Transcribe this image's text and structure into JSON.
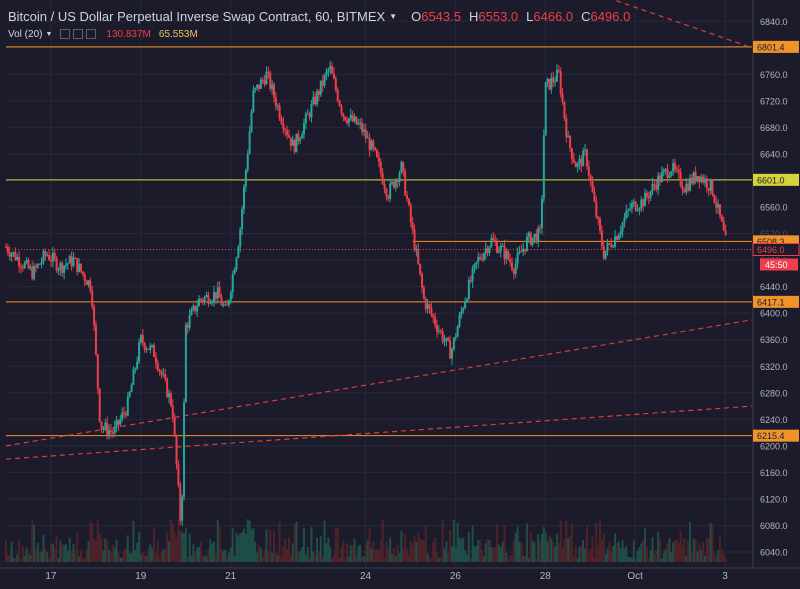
{
  "header": {
    "title": "Bitcoin / US Dollar Perpetual Inverse Swap Contract, 60, BITMEX",
    "dropdown_icon": "chevron-down-icon",
    "ohlc": [
      {
        "key": "O",
        "value": "6543.5"
      },
      {
        "key": "H",
        "value": "6553.0"
      },
      {
        "key": "L",
        "value": "6466.0"
      },
      {
        "key": "C",
        "value": "6496.0"
      }
    ]
  },
  "volume_indicator": {
    "label": "Vol (20)",
    "value1": "130.837M",
    "value2": "65.553M",
    "icons": [
      "eye-icon",
      "gear-icon",
      "close-icon"
    ]
  },
  "colors": {
    "background": "#1c1b2b",
    "up": "#26a69a",
    "down": "#ef3e4a",
    "orange_line": "#f0932b",
    "yellow_line": "#d4d43a",
    "trend_line": "#e03c3c",
    "axis_text": "#b2b5be"
  },
  "chart_data": {
    "type": "candlestick",
    "title": "Bitcoin / US Dollar Perpetual Inverse Swap Contract, 60, BITMEX",
    "y_ticks": [
      6840,
      6800,
      6760,
      6720,
      6680,
      6640,
      6600,
      6560,
      6520,
      6480,
      6440,
      6400,
      6360,
      6320,
      6280,
      6240,
      6200,
      6160,
      6120,
      6080,
      6040
    ],
    "y_tick_labels": [
      "6840.0",
      "6800.0",
      "6760.0",
      "6720.0",
      "6680.0",
      "6640.0",
      "6600.0",
      "6560.0",
      "6520.0",
      "6480.0",
      "6440.0",
      "6400.0",
      "6360.0",
      "6320.0",
      "6280.0",
      "6240.0",
      "6200.0",
      "6160.0",
      "6120.0",
      "6080.0",
      "6040.0"
    ],
    "ylim": [
      6025,
      6860
    ],
    "x_ticks": [
      "17",
      "19",
      "21",
      "24",
      "26",
      "28",
      "Oct",
      "3"
    ],
    "x_tick_positions_days": [
      1,
      3,
      5,
      8,
      10,
      12,
      14,
      16
    ],
    "xlim_days": [
      0,
      16.6
    ],
    "horizontal_levels": [
      {
        "price": 6801.4,
        "label": "6801.4",
        "color": "orange"
      },
      {
        "price": 6601.0,
        "label": "6601.0",
        "color": "yellow"
      },
      {
        "price": 6508.3,
        "label": "6508.3",
        "color": "orange"
      },
      {
        "price": 6417.1,
        "label": "6417.1",
        "color": "orange"
      },
      {
        "price": 6215.4,
        "label": "6215.4",
        "color": "orange"
      }
    ],
    "last_price": {
      "price": 6496.0,
      "label": "6496.0",
      "countdown": "45:50"
    },
    "trend_lines": [
      {
        "from": [
          0.0,
          6200
        ],
        "to": [
          16.6,
          6390
        ]
      },
      {
        "from": [
          0.0,
          6180
        ],
        "to": [
          16.6,
          6260
        ]
      },
      {
        "from": [
          13.2,
          6880
        ],
        "to": [
          16.6,
          6800
        ]
      }
    ],
    "price_path": [
      [
        0.0,
        6500
      ],
      [
        0.3,
        6480
      ],
      [
        0.6,
        6460
      ],
      [
        0.9,
        6490
      ],
      [
        1.2,
        6470
      ],
      [
        1.5,
        6480
      ],
      [
        1.9,
        6440
      ],
      [
        2.1,
        6230
      ],
      [
        2.4,
        6220
      ],
      [
        2.7,
        6260
      ],
      [
        3.0,
        6360
      ],
      [
        3.3,
        6340
      ],
      [
        3.5,
        6300
      ],
      [
        3.7,
        6260
      ],
      [
        3.9,
        6070
      ],
      [
        4.0,
        6380
      ],
      [
        4.3,
        6420
      ],
      [
        4.7,
        6430
      ],
      [
        4.9,
        6400
      ],
      [
        5.2,
        6520
      ],
      [
        5.5,
        6730
      ],
      [
        5.8,
        6760
      ],
      [
        6.1,
        6700
      ],
      [
        6.4,
        6650
      ],
      [
        6.8,
        6710
      ],
      [
        7.2,
        6770
      ],
      [
        7.5,
        6700
      ],
      [
        7.9,
        6680
      ],
      [
        8.2,
        6640
      ],
      [
        8.5,
        6580
      ],
      [
        8.8,
        6620
      ],
      [
        9.1,
        6500
      ],
      [
        9.3,
        6420
      ],
      [
        9.6,
        6380
      ],
      [
        9.9,
        6340
      ],
      [
        10.2,
        6420
      ],
      [
        10.5,
        6480
      ],
      [
        10.8,
        6510
      ],
      [
        11.1,
        6490
      ],
      [
        11.3,
        6470
      ],
      [
        11.6,
        6510
      ],
      [
        11.9,
        6520
      ],
      [
        12.0,
        6740
      ],
      [
        12.3,
        6760
      ],
      [
        12.5,
        6660
      ],
      [
        12.7,
        6620
      ],
      [
        12.9,
        6640
      ],
      [
        13.1,
        6560
      ],
      [
        13.3,
        6490
      ],
      [
        13.6,
        6520
      ],
      [
        13.9,
        6560
      ],
      [
        14.2,
        6570
      ],
      [
        14.5,
        6600
      ],
      [
        14.8,
        6620
      ],
      [
        15.1,
        6590
      ],
      [
        15.4,
        6610
      ],
      [
        15.7,
        6590
      ],
      [
        15.9,
        6540
      ],
      [
        16.05,
        6496
      ]
    ]
  }
}
